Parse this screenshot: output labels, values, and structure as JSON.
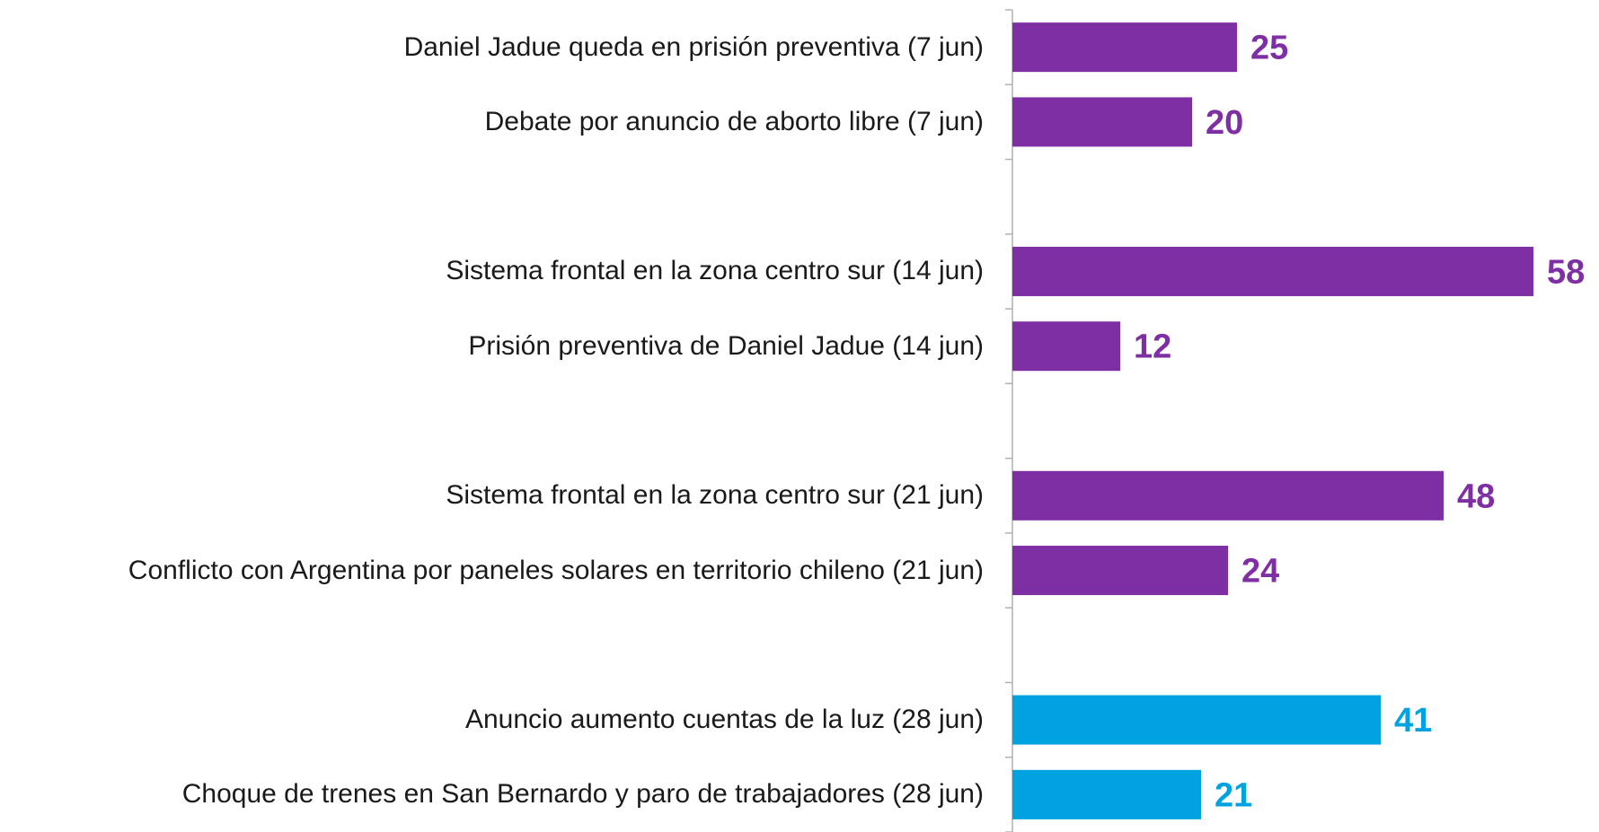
{
  "chart_data": {
    "type": "barh",
    "categories": [
      "Daniel Jadue queda en prisión preventiva (7 jun)",
      "Debate por anuncio de aborto libre (7 jun)",
      null,
      "Sistema frontal en la zona centro sur (14 jun)",
      "Prisión preventiva de Daniel Jadue (14 jun)",
      null,
      "Sistema frontal en la zona centro sur (21 jun)",
      "Conflicto con Argentina por paneles solares en territorio chileno  (21 jun)",
      null,
      "Anuncio aumento cuentas de la luz (28 jun)",
      "Choque de trenes en San Bernardo y paro de trabajadores (28 jun)"
    ],
    "values": [
      25,
      20,
      null,
      58,
      12,
      null,
      48,
      24,
      null,
      41,
      21
    ],
    "colors": [
      "#7f2fa4",
      "#7f2fa4",
      null,
      "#7f2fa4",
      "#7f2fa4",
      null,
      "#7f2fa4",
      "#7f2fa4",
      null,
      "#00a3e0",
      "#00a3e0"
    ]
  }
}
